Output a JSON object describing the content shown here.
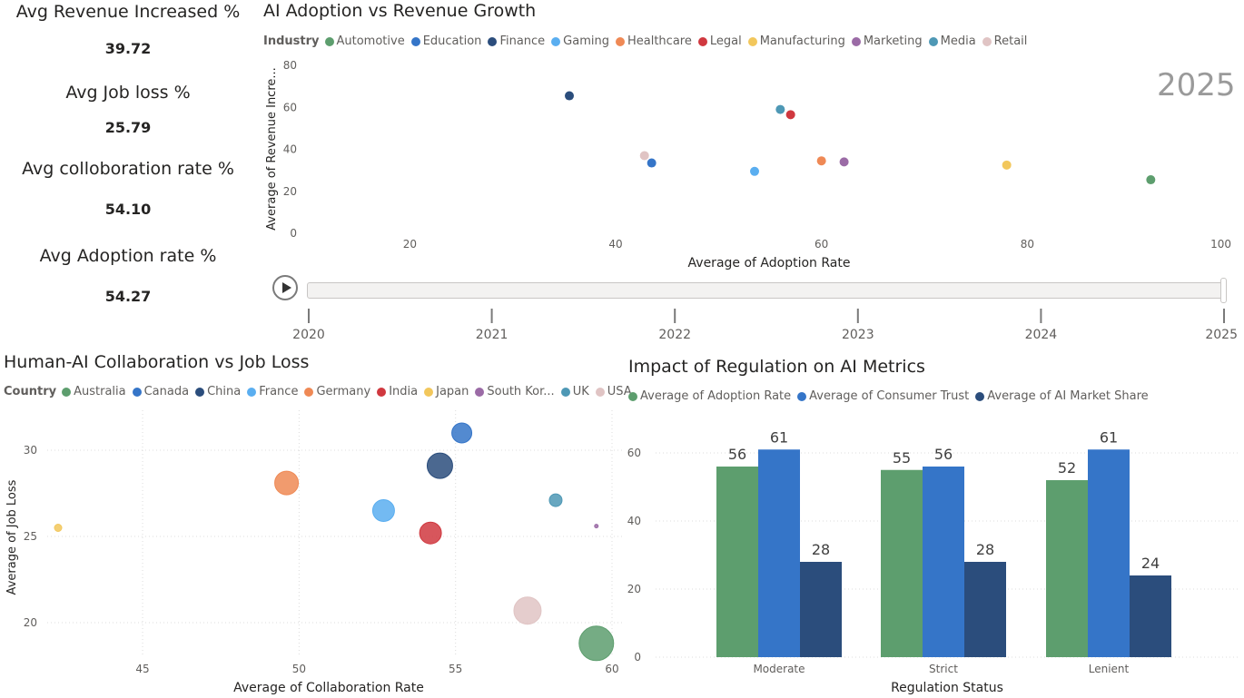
{
  "colors": {
    "Automotive": "#5d9e6e",
    "Education": "#3575c8",
    "Finance": "#2b4d7c",
    "Gaming": "#5aaef0",
    "Healthcare": "#ef8955",
    "Legal": "#d0383f",
    "Manufacturing": "#f2c75c",
    "Marketing": "#9b6ba6",
    "Media": "#4e98b5",
    "Retail": "#e0c4c4"
  },
  "kpis": [
    {
      "label": "Avg Revenue Increased %",
      "value": "39.72"
    },
    {
      "label": "Avg Job loss %",
      "value": "25.79"
    },
    {
      "label": "Avg colloboration rate %",
      "value": "54.10"
    },
    {
      "label": "Avg Adoption rate %",
      "value": "54.27"
    }
  ],
  "play_axis": {
    "current_year": "2025",
    "years": [
      "2020",
      "2021",
      "2022",
      "2023",
      "2024",
      "2025"
    ]
  },
  "chart_data": [
    {
      "type": "scatter",
      "title": "AI Adoption vs Revenue Growth",
      "legend_title": "Industry",
      "legend_position": "top-left",
      "xlabel": "Average of Adoption Rate",
      "ylabel": "Average of Revenue Incre...",
      "xlim": [
        10,
        100
      ],
      "ylim": [
        0,
        80
      ],
      "xticks": [
        20,
        40,
        60,
        80,
        100
      ],
      "yticks": [
        0,
        20,
        40,
        60,
        80
      ],
      "grid": false,
      "points": [
        {
          "name": "Automotive",
          "x": 92.0,
          "y": 25.5
        },
        {
          "name": "Education",
          "x": 43.5,
          "y": 33.5
        },
        {
          "name": "Finance",
          "x": 35.5,
          "y": 65.5
        },
        {
          "name": "Gaming",
          "x": 53.5,
          "y": 29.5
        },
        {
          "name": "Healthcare",
          "x": 60.0,
          "y": 34.5
        },
        {
          "name": "Legal",
          "x": 57.0,
          "y": 56.5
        },
        {
          "name": "Manufacturing",
          "x": 78.0,
          "y": 32.5
        },
        {
          "name": "Marketing",
          "x": 62.2,
          "y": 34.0
        },
        {
          "name": "Media",
          "x": 56.0,
          "y": 59.0
        },
        {
          "name": "Retail",
          "x": 42.8,
          "y": 37.0
        }
      ]
    },
    {
      "type": "scatter",
      "title": "Human-AI Collaboration vs Job Loss",
      "legend_title": "Country",
      "legend_position": "top-left",
      "xlabel": "Average of Collaboration Rate",
      "ylabel": "Average of Job Loss",
      "xlim": [
        42.3,
        60
      ],
      "ylim": [
        17.5,
        32.5
      ],
      "xticks": [
        45,
        50,
        55,
        60
      ],
      "yticks": [
        20,
        25,
        30
      ],
      "grid": true,
      "points": [
        {
          "name": "Australia",
          "x": 59.5,
          "y": 18.8,
          "size": 19
        },
        {
          "name": "Canada",
          "x": 55.2,
          "y": 31.0,
          "size": 11
        },
        {
          "name": "China",
          "x": 54.5,
          "y": 29.1,
          "size": 14
        },
        {
          "name": "France",
          "x": 52.7,
          "y": 26.5,
          "size": 12
        },
        {
          "name": "Germany",
          "x": 49.6,
          "y": 28.1,
          "size": 13
        },
        {
          "name": "India",
          "x": 54.2,
          "y": 25.2,
          "size": 12
        },
        {
          "name": "Japan",
          "x": 42.3,
          "y": 25.5,
          "size": 4
        },
        {
          "name": "South Kor...",
          "x": 59.5,
          "y": 25.6,
          "size": 2
        },
        {
          "name": "UK",
          "x": 58.2,
          "y": 27.1,
          "size": 7
        },
        {
          "name": "USA",
          "x": 57.3,
          "y": 20.7,
          "size": 15
        }
      ]
    },
    {
      "type": "bar",
      "title": "Impact of Regulation on AI Metrics",
      "legend_position": "top-left",
      "xlabel": "Regulation Status",
      "ylabel": "",
      "ylim": [
        0,
        70
      ],
      "yticks": [
        0,
        20,
        40,
        60
      ],
      "grid": true,
      "categories": [
        "Moderate",
        "Strict",
        "Lenient"
      ],
      "series": [
        {
          "name": "Average of Adoption Rate",
          "color": "#5d9e6e",
          "values": [
            56,
            55,
            52
          ]
        },
        {
          "name": "Average of Consumer Trust",
          "color": "#3575c8",
          "values": [
            61,
            56,
            61
          ]
        },
        {
          "name": "Average of AI Market Share",
          "color": "#2b4d7c",
          "values": [
            28,
            28,
            24
          ]
        }
      ]
    }
  ]
}
